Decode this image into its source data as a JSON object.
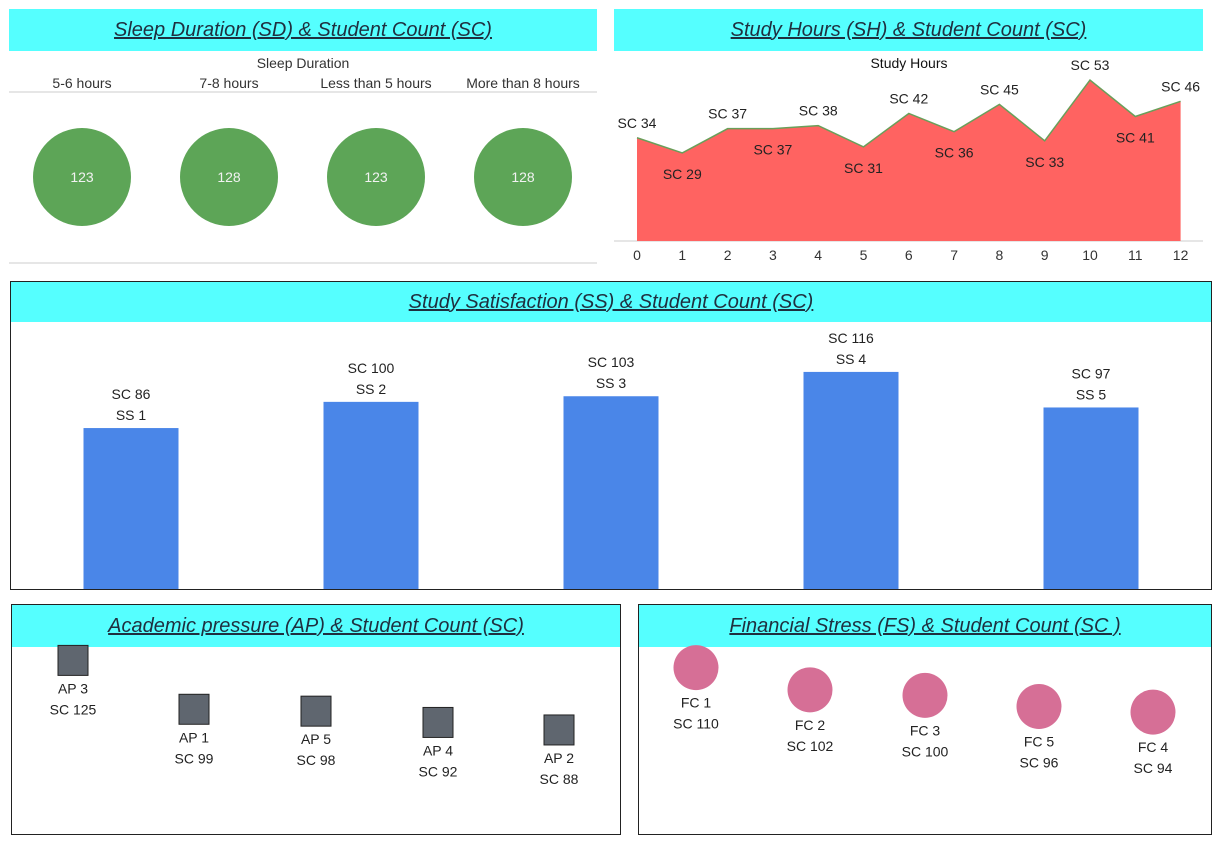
{
  "colors": {
    "title_bg": "#55ffff",
    "sleep_circle": "#5da557",
    "study_area": "#ff6361",
    "study_line": "#6a9f5a",
    "bar": "#4a86e8",
    "ap_marker": "#5f666f",
    "fs_marker": "#d66f96"
  },
  "chart_data": [
    {
      "id": "sleep",
      "type": "scatter",
      "title": "Sleep Duration (SD) & Student Count (SC)",
      "header": "Sleep Duration",
      "categories": [
        "5-6 hours",
        "7-8 hours",
        "Less than 5 hours",
        "More than 8 hours"
      ],
      "values": [
        123,
        128,
        123,
        128
      ]
    },
    {
      "id": "study_hours",
      "type": "area",
      "title": "Study Hours (SH) & Student Count (SC)",
      "header": "Study Hours",
      "x": [
        0,
        1,
        2,
        3,
        4,
        5,
        6,
        7,
        8,
        9,
        10,
        11,
        12
      ],
      "values": [
        34,
        29,
        37,
        37,
        38,
        31,
        42,
        36,
        45,
        33,
        53,
        41,
        46
      ],
      "labels": [
        "SC 34",
        "SC 29",
        "SC 37",
        "SC 37",
        "SC 38",
        "SC 31",
        "SC 42",
        "SC 36",
        "SC 45",
        "SC 33",
        "SC 53",
        "SC 41",
        "SC 46"
      ],
      "ylim": [
        0,
        55
      ]
    },
    {
      "id": "satisfaction",
      "type": "bar",
      "title": "Study Satisfaction (SS) & Student Count (SC)",
      "categories": [
        "SS 1",
        "SS 2",
        "SS 3",
        "SS 4",
        "SS 5"
      ],
      "values": [
        86,
        100,
        103,
        116,
        97
      ],
      "labels": [
        "SC 86",
        "SC 100",
        "SC 103",
        "SC 116",
        "SC 97"
      ],
      "ylim": [
        0,
        140
      ]
    },
    {
      "id": "academic",
      "type": "scatter",
      "title": "Academic pressure (AP) & Student Count (SC)",
      "categories": [
        "AP 3",
        "AP 1",
        "AP 5",
        "AP 4",
        "AP 2"
      ],
      "values": [
        125,
        99,
        98,
        92,
        88
      ],
      "labels": [
        "SC 125",
        "SC 99",
        "SC 98",
        "SC 92",
        "SC 88"
      ]
    },
    {
      "id": "financial",
      "type": "scatter",
      "title": "Financial Stress (FS) & Student Count (SC )",
      "categories": [
        "FC 1",
        "FC 2",
        "FC 3",
        "FC 5",
        "FC 4"
      ],
      "values": [
        110,
        102,
        100,
        96,
        94
      ],
      "labels": [
        "SC 110",
        "SC 102",
        "SC 100",
        "SC 96",
        "SC 94"
      ]
    }
  ]
}
